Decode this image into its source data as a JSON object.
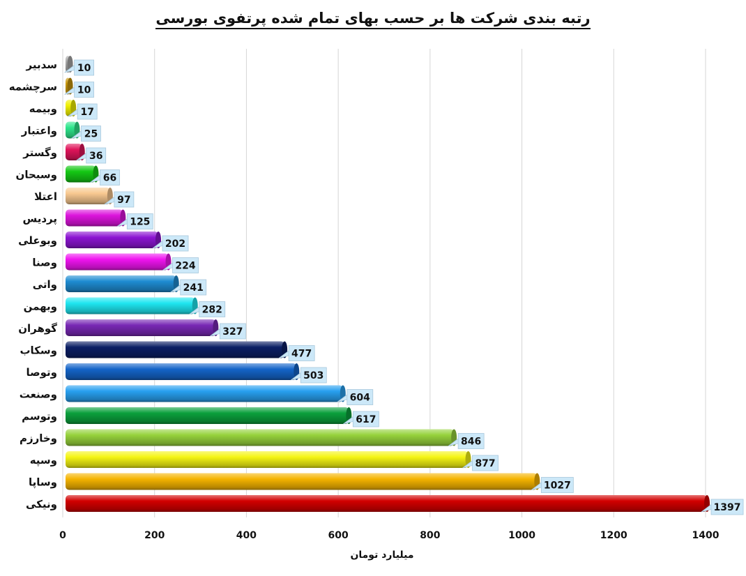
{
  "chart_data": {
    "type": "bar",
    "orientation": "horizontal",
    "title": "رتبه بندی شرکت ها بر حسب بهای تمام شده پرتفوی بورسی",
    "xlabel": "میلیارد تومان",
    "ylabel": "",
    "xlim": [
      0,
      1400
    ],
    "xticks": [
      0,
      200,
      400,
      600,
      800,
      1000,
      1200,
      1400
    ],
    "grid": true,
    "legend": "none",
    "categories": [
      "سدبیر",
      "سرچشمه",
      "وبیمه",
      "واعتبار",
      "وگستر",
      "وسبحان",
      "اعتلا",
      "پردیس",
      "وبوعلی",
      "وصنا",
      "واتی",
      "وبهمن",
      "گوهران",
      "وسکاب",
      "وتوصا",
      "وصنعت",
      "وتوسم",
      "وخارزم",
      "وسپه",
      "وساپا",
      "ونیکی"
    ],
    "values": [
      10,
      10,
      17,
      25,
      36,
      66,
      97,
      125,
      202,
      224,
      241,
      282,
      327,
      477,
      503,
      604,
      617,
      846,
      877,
      1027,
      1397
    ],
    "colors": [
      "#a8a8a8",
      "#c8960a",
      "#f0f000",
      "#2ee68c",
      "#e0145a",
      "#14c814",
      "#f8c890",
      "#dc14dc",
      "#8c14d2",
      "#f014f0",
      "#1e8cd2",
      "#1ee6f0",
      "#7828b4",
      "#0a1e64",
      "#1464c8",
      "#28a0f0",
      "#0aa03c",
      "#96d23c",
      "#f5f514",
      "#f5b400",
      "#d20000"
    ]
  }
}
